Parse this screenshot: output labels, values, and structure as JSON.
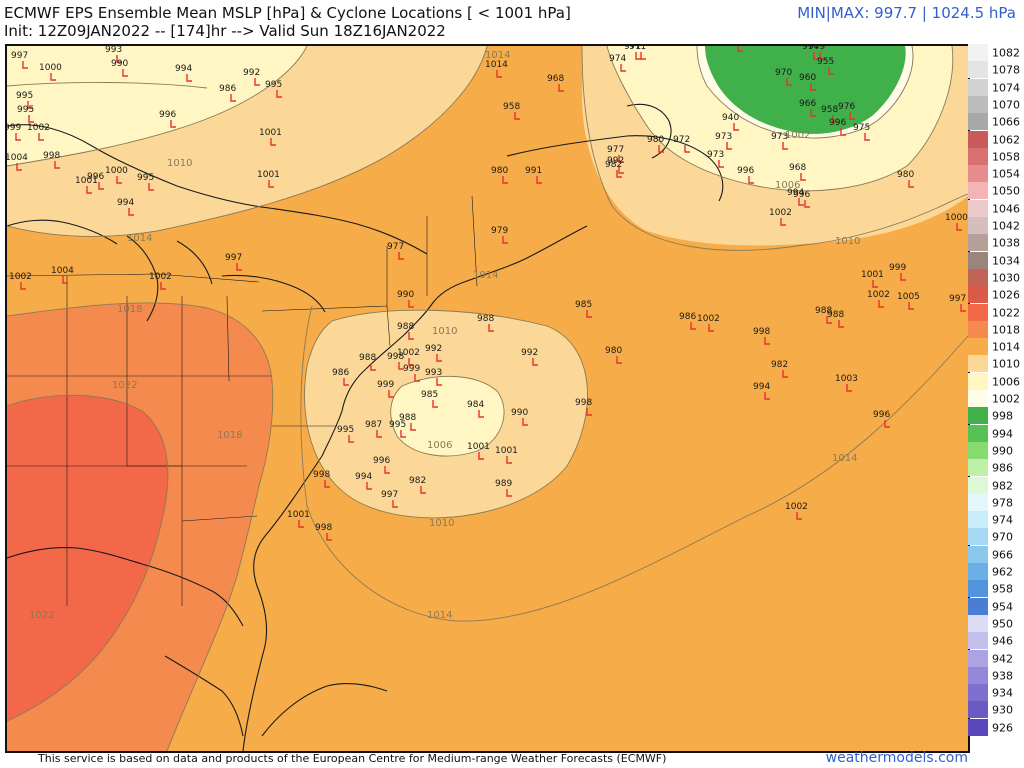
{
  "header": {
    "title": "ECMWF EPS Ensemble Mean MSLP [hPa] & Cyclone Locations [ < 1001 hPa]",
    "init_line": "Init: 12Z09JAN2022 -- [174]hr --> Valid Sun 18Z16JAN2022",
    "minmax": "MIN|MAX: 997.7 | 1024.5 hPa"
  },
  "footer": {
    "credit": "This service is based on data and products of the European Centre for Medium-range Weather Forecasts (ECMWF)",
    "site": "weathermodels.com"
  },
  "legend": {
    "labels": [
      "1082",
      "1078",
      "1074",
      "1070",
      "1066",
      "1062",
      "1058",
      "1054",
      "1050",
      "1046",
      "1042",
      "1038",
      "1034",
      "1030",
      "1026",
      "1022",
      "1018",
      "1014",
      "1010",
      "1006",
      "1002",
      "998",
      "994",
      "990",
      "986",
      "982",
      "978",
      "974",
      "970",
      "966",
      "962",
      "958",
      "954",
      "950",
      "946",
      "942",
      "938",
      "934",
      "930",
      "926"
    ],
    "colors": [
      "#f2f2f2",
      "#e4e4e4",
      "#d2d2d2",
      "#bcbcbc",
      "#a8a8a8",
      "#c85a5a",
      "#d87070",
      "#e68c8c",
      "#f2b4b4",
      "#eccaca",
      "#d6bebe",
      "#b4a09a",
      "#9a847c",
      "#c26458",
      "#dc5a48",
      "#f36848",
      "#f58a4e",
      "#f6ac48",
      "#fcd898",
      "#fff6c4",
      "#fffce8",
      "#3fb04a",
      "#56c256",
      "#86dc6e",
      "#bef0a8",
      "#dcf8d4",
      "#e2f6fb",
      "#c8ecf9",
      "#a6daf4",
      "#8ac8ee",
      "#6caee6",
      "#5294dc",
      "#4a7ed2",
      "#dcdcf4",
      "#c4c0ec",
      "#aca4e2",
      "#9488d8",
      "#7e70ce",
      "#6a5ac4",
      "#5848ba"
    ]
  },
  "map": {
    "isobar_labels": [
      "1010",
      "1014",
      "1014",
      "1018",
      "1022",
      "1018",
      "1022",
      "1014",
      "1010",
      "1006",
      "1010",
      "1014",
      "1014",
      "1002",
      "1010",
      "1006"
    ],
    "lows": [
      [
        "997"
      ],
      [
        "1000"
      ],
      [
        "995"
      ],
      [
        "995"
      ],
      [
        "999"
      ],
      [
        "1002"
      ],
      [
        "998"
      ],
      [
        "1004"
      ],
      [
        "1001"
      ],
      [
        "996"
      ],
      [
        "1000"
      ],
      [
        "995"
      ],
      [
        "994"
      ],
      [
        "993"
      ],
      [
        "990"
      ],
      [
        "994"
      ],
      [
        "996"
      ],
      [
        "992"
      ],
      [
        "986"
      ],
      [
        "995"
      ],
      [
        "1001"
      ],
      [
        "1001"
      ],
      [
        "997"
      ],
      [
        "1004"
      ],
      [
        "1002"
      ],
      [
        "1002"
      ],
      [
        "1014"
      ],
      [
        "968"
      ],
      [
        "958"
      ],
      [
        "980"
      ],
      [
        "991"
      ],
      [
        "979"
      ],
      [
        "977"
      ],
      [
        "990"
      ],
      [
        "988"
      ],
      [
        "988"
      ],
      [
        "992"
      ],
      [
        "1002"
      ],
      [
        "999"
      ],
      [
        "993"
      ],
      [
        "985"
      ],
      [
        "984"
      ],
      [
        "990"
      ],
      [
        "992"
      ],
      [
        "998"
      ],
      [
        "1001"
      ],
      [
        "1001"
      ],
      [
        "996"
      ],
      [
        "998"
      ],
      [
        "994"
      ],
      [
        "997"
      ],
      [
        "982"
      ],
      [
        "989"
      ],
      [
        "998"
      ],
      [
        "1001"
      ],
      [
        "998"
      ],
      [
        "999"
      ],
      [
        "995"
      ],
      [
        "986"
      ],
      [
        "988"
      ],
      [
        "987"
      ],
      [
        "995"
      ],
      [
        "988"
      ],
      [
        "985"
      ],
      [
        "986"
      ],
      [
        "1002"
      ],
      [
        "980"
      ],
      [
        "998"
      ],
      [
        "982"
      ],
      [
        "994"
      ],
      [
        "1003"
      ],
      [
        "996"
      ],
      [
        "1002"
      ],
      [
        "988"
      ],
      [
        "988"
      ],
      [
        "1001"
      ],
      [
        "999"
      ],
      [
        "1002"
      ],
      [
        "1005"
      ],
      [
        "997"
      ],
      [
        "1000"
      ],
      [
        "980"
      ],
      [
        "974"
      ],
      [
        "971"
      ],
      [
        "971"
      ],
      [
        "990"
      ],
      [
        "974"
      ],
      [
        "979"
      ],
      [
        "970"
      ],
      [
        "960"
      ],
      [
        "955"
      ],
      [
        "966"
      ],
      [
        "958"
      ],
      [
        "976"
      ],
      [
        "996"
      ],
      [
        "975"
      ],
      [
        "940"
      ],
      [
        "973"
      ],
      [
        "973"
      ],
      [
        "992"
      ],
      [
        "980"
      ],
      [
        "972"
      ],
      [
        "973"
      ],
      [
        "977"
      ],
      [
        "982"
      ],
      [
        "996"
      ],
      [
        "968"
      ],
      [
        "994"
      ],
      [
        "996"
      ],
      [
        "1002"
      ]
    ]
  }
}
